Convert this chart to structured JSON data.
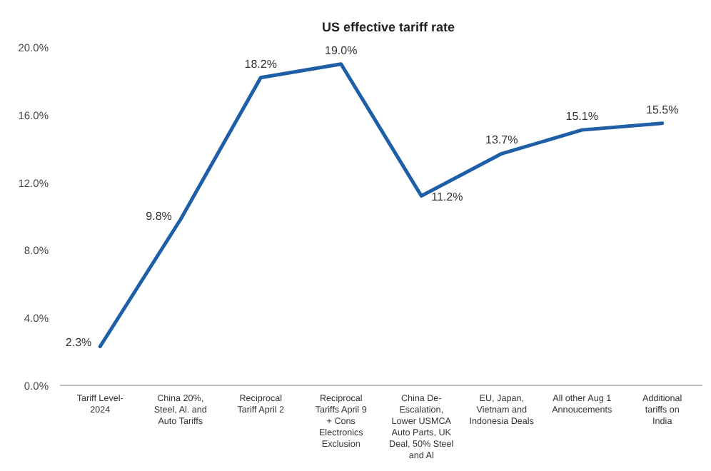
{
  "chart_data": {
    "type": "line",
    "title": "US effective tariff rate",
    "categories": [
      "Tariff Level-2024",
      "China 20%, Steel, Al. and Auto Tariffs",
      "Reciprocal Tariff April 2",
      "Reciprocal Tariffs April 9 + Cons Electronics Exclusion",
      "China De-Escalation, Lower USMCA Auto Parts, UK Deal, 50% Steel and Al",
      "EU, Japan, Vietnam and Indonesia Deals",
      "All other Aug 1 Annoucements",
      "Additional tariffs on India"
    ],
    "series": [
      {
        "color": "#1f5fa8",
        "values": [
          2.3,
          9.8,
          18.2,
          19.0,
          11.2,
          13.7,
          15.1,
          15.5
        ],
        "value_labels": [
          "2.3%",
          "9.8%",
          "18.2%",
          "19.0%",
          "11.2%",
          "13.7%",
          "15.1%",
          "15.5%"
        ]
      }
    ],
    "ylim": [
      0,
      20
    ],
    "yticks": [
      {
        "value": 0,
        "label": "0.0%"
      },
      {
        "value": 4,
        "label": "4.0%"
      },
      {
        "value": 8,
        "label": "8.0%"
      },
      {
        "value": 12,
        "label": "12.0%"
      },
      {
        "value": 16,
        "label": "16.0%"
      },
      {
        "value": 20,
        "label": "20.0%"
      }
    ],
    "grid": false,
    "marker": "none",
    "line_style": "solid"
  }
}
